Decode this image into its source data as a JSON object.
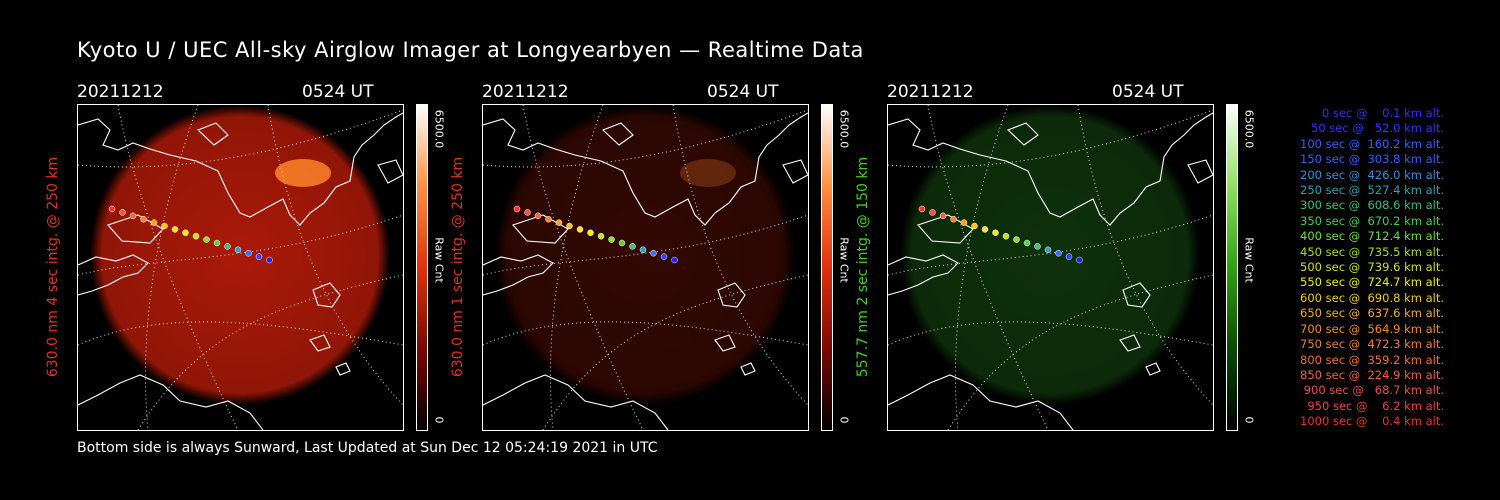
{
  "title": "Kyoto U / UEC All-sky Airglow Imager at Longyearbyen — Realtime Data",
  "footer": "Bottom side is always Sunward, Last Updated at Sun Dec 12 05:24:19 2021 in UTC",
  "colors": {
    "red_label": "#e03020",
    "green_label": "#40d020"
  },
  "panels": [
    {
      "date": "20211212",
      "time": "0524 UT",
      "ylabel": "630.0 nm 4 sec intg. @ 250 km",
      "cbar_max": "6500.0",
      "cbar_unit": "Raw Cnt",
      "cbar_min": "0",
      "colormap": "red",
      "glow_intensity": 0.85
    },
    {
      "date": "20211212",
      "time": "0524 UT",
      "ylabel": "630.0 nm 1 sec intg. @ 250 km",
      "cbar_max": "6500.0",
      "cbar_unit": "Raw Cnt",
      "cbar_min": "0",
      "colormap": "red",
      "glow_intensity": 0.25
    },
    {
      "date": "20211212",
      "time": "0524 UT",
      "ylabel": "557.7 nm 2 sec intg. @ 150 km",
      "cbar_max": "6500.0",
      "cbar_unit": "Raw Cnt",
      "cbar_min": "0",
      "colormap": "green",
      "glow_intensity": 0.35
    }
  ],
  "trajectory_legend": [
    {
      "text": "   0 sec @    0.1 km alt.",
      "color": "#3030ff"
    },
    {
      "text": "  50 sec @   52.0 km alt.",
      "color": "#3030ff"
    },
    {
      "text": " 100 sec @  160.2 km alt.",
      "color": "#3060ff"
    },
    {
      "text": " 150 sec @  303.8 km alt.",
      "color": "#3060ff"
    },
    {
      "text": " 200 sec @  426.0 km alt.",
      "color": "#3090e0"
    },
    {
      "text": " 250 sec @  527.4 km alt.",
      "color": "#30a0b0"
    },
    {
      "text": " 300 sec @  608.6 km alt.",
      "color": "#30c080"
    },
    {
      "text": " 350 sec @  670.2 km alt.",
      "color": "#40d050"
    },
    {
      "text": " 400 sec @  712.4 km alt.",
      "color": "#70e030"
    },
    {
      "text": " 450 sec @  735.5 km alt.",
      "color": "#a0e020"
    },
    {
      "text": " 500 sec @  739.6 km alt.",
      "color": "#d0e020"
    },
    {
      "text": " 550 sec @  724.7 km alt.",
      "color": "#f0f000"
    },
    {
      "text": " 600 sec @  690.8 km alt.",
      "color": "#f0d000"
    },
    {
      "text": " 650 sec @  637.6 km alt.",
      "color": "#f0b020"
    },
    {
      "text": " 700 sec @  564.9 km alt.",
      "color": "#f09020"
    },
    {
      "text": " 750 sec @  472.3 km alt.",
      "color": "#f08030"
    },
    {
      "text": " 800 sec @  359.2 km alt.",
      "color": "#f07030"
    },
    {
      "text": " 850 sec @  224.9 km alt.",
      "color": "#f06040"
    },
    {
      "text": " 900 sec @   68.7 km alt.",
      "color": "#f05040"
    },
    {
      "text": " 950 sec @    6.2 km alt.",
      "color": "#f04040"
    },
    {
      "text": "1000 sec @    0.4 km alt.",
      "color": "#f03030"
    }
  ]
}
